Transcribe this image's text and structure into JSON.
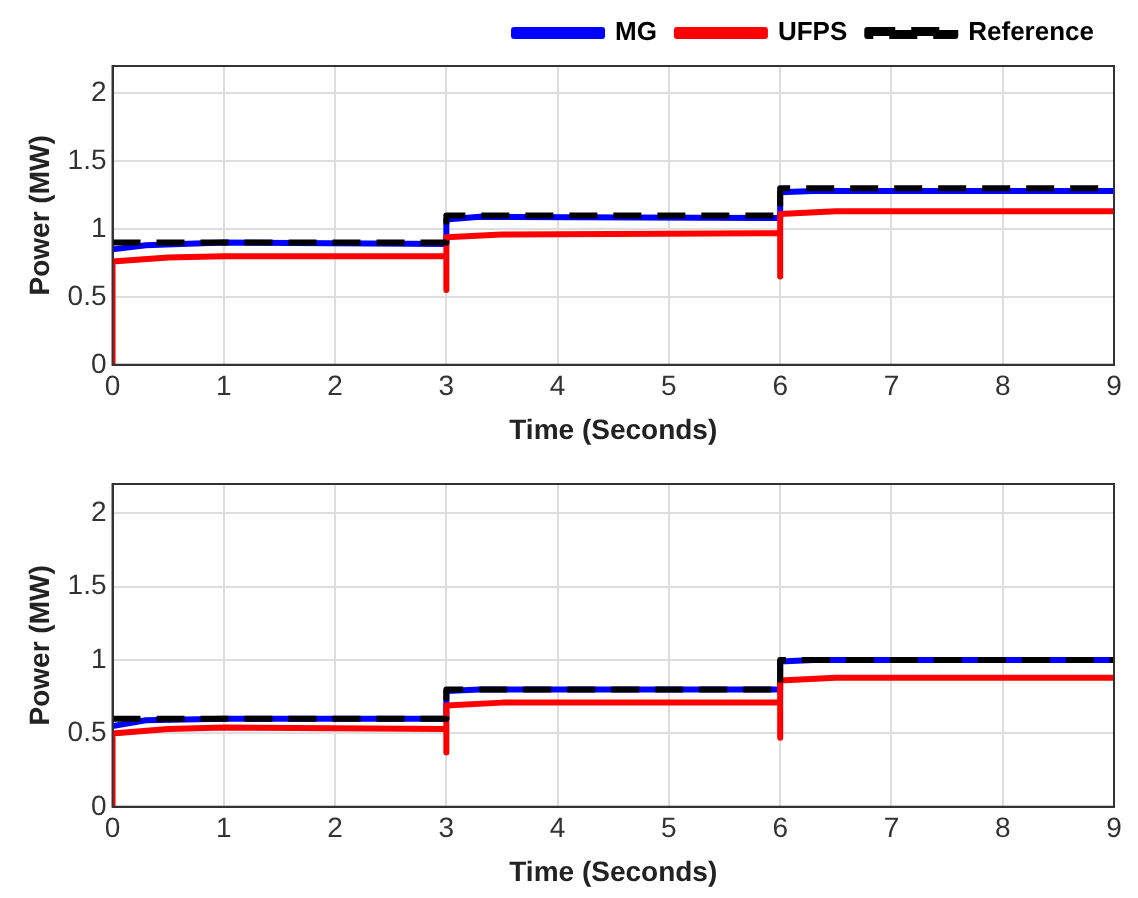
{
  "chart_data": [
    {
      "type": "line",
      "xlabel": "Time (Seconds)",
      "ylabel": "Power (MW)",
      "xlim": [
        0,
        9
      ],
      "xticks": [
        0,
        1,
        2,
        3,
        4,
        5,
        6,
        7,
        8,
        9
      ],
      "ylim": [
        0,
        2.2
      ],
      "yticks": [
        0,
        0.5,
        1,
        1.5,
        2
      ],
      "grid": true,
      "legend": "top right",
      "series": [
        {
          "name": "MG",
          "color": "#0000ff",
          "line_style": "solid",
          "x": [
            0,
            0.3,
            1,
            3,
            3,
            3.3,
            6,
            6,
            6.3,
            9
          ],
          "values": [
            0.85,
            0.88,
            0.9,
            0.89,
            1.07,
            1.09,
            1.08,
            1.27,
            1.28,
            1.28
          ]
        },
        {
          "name": "UFPS",
          "color": "#ff0000",
          "line_style": "solid",
          "x": [
            0,
            0,
            0.5,
            1,
            2,
            3,
            3,
            3,
            3.5,
            6,
            6,
            6,
            6.5,
            9
          ],
          "values": [
            0,
            0.76,
            0.79,
            0.8,
            0.8,
            0.8,
            0.55,
            0.94,
            0.96,
            0.97,
            0.65,
            1.11,
            1.13,
            1.13
          ]
        },
        {
          "name": "Reference",
          "color": "#000000",
          "line_style": "dashed",
          "x": [
            0,
            3,
            3,
            6,
            6,
            9
          ],
          "values": [
            0.9,
            0.9,
            1.1,
            1.1,
            1.3,
            1.3
          ]
        }
      ]
    },
    {
      "type": "line",
      "xlabel": "Time (Seconds)",
      "ylabel": "Power (MW)",
      "xlim": [
        0,
        9
      ],
      "xticks": [
        0,
        1,
        2,
        3,
        4,
        5,
        6,
        7,
        8,
        9
      ],
      "ylim": [
        0,
        2.2
      ],
      "yticks": [
        0,
        0.5,
        1,
        1.5,
        2
      ],
      "grid": true,
      "series": [
        {
          "color": "#0000ff",
          "line_style": "solid",
          "x": [
            0,
            0.3,
            1,
            3,
            3,
            3.3,
            6,
            6,
            6.3,
            9
          ],
          "values": [
            0.55,
            0.59,
            0.6,
            0.6,
            0.79,
            0.8,
            0.8,
            0.99,
            1,
            1
          ]
        },
        {
          "color": "#ff0000",
          "line_style": "solid",
          "x": [
            0,
            0,
            0.5,
            1,
            3,
            3,
            3,
            3.5,
            6,
            6,
            6,
            6.5,
            9
          ],
          "values": [
            0,
            0.5,
            0.53,
            0.54,
            0.53,
            0.37,
            0.69,
            0.71,
            0.71,
            0.47,
            0.86,
            0.88,
            0.88
          ]
        },
        {
          "color": "#000000",
          "line_style": "dashed",
          "x": [
            0,
            3,
            3,
            6,
            6,
            9
          ],
          "values": [
            0.6,
            0.6,
            0.8,
            0.8,
            1,
            1
          ]
        }
      ]
    }
  ]
}
